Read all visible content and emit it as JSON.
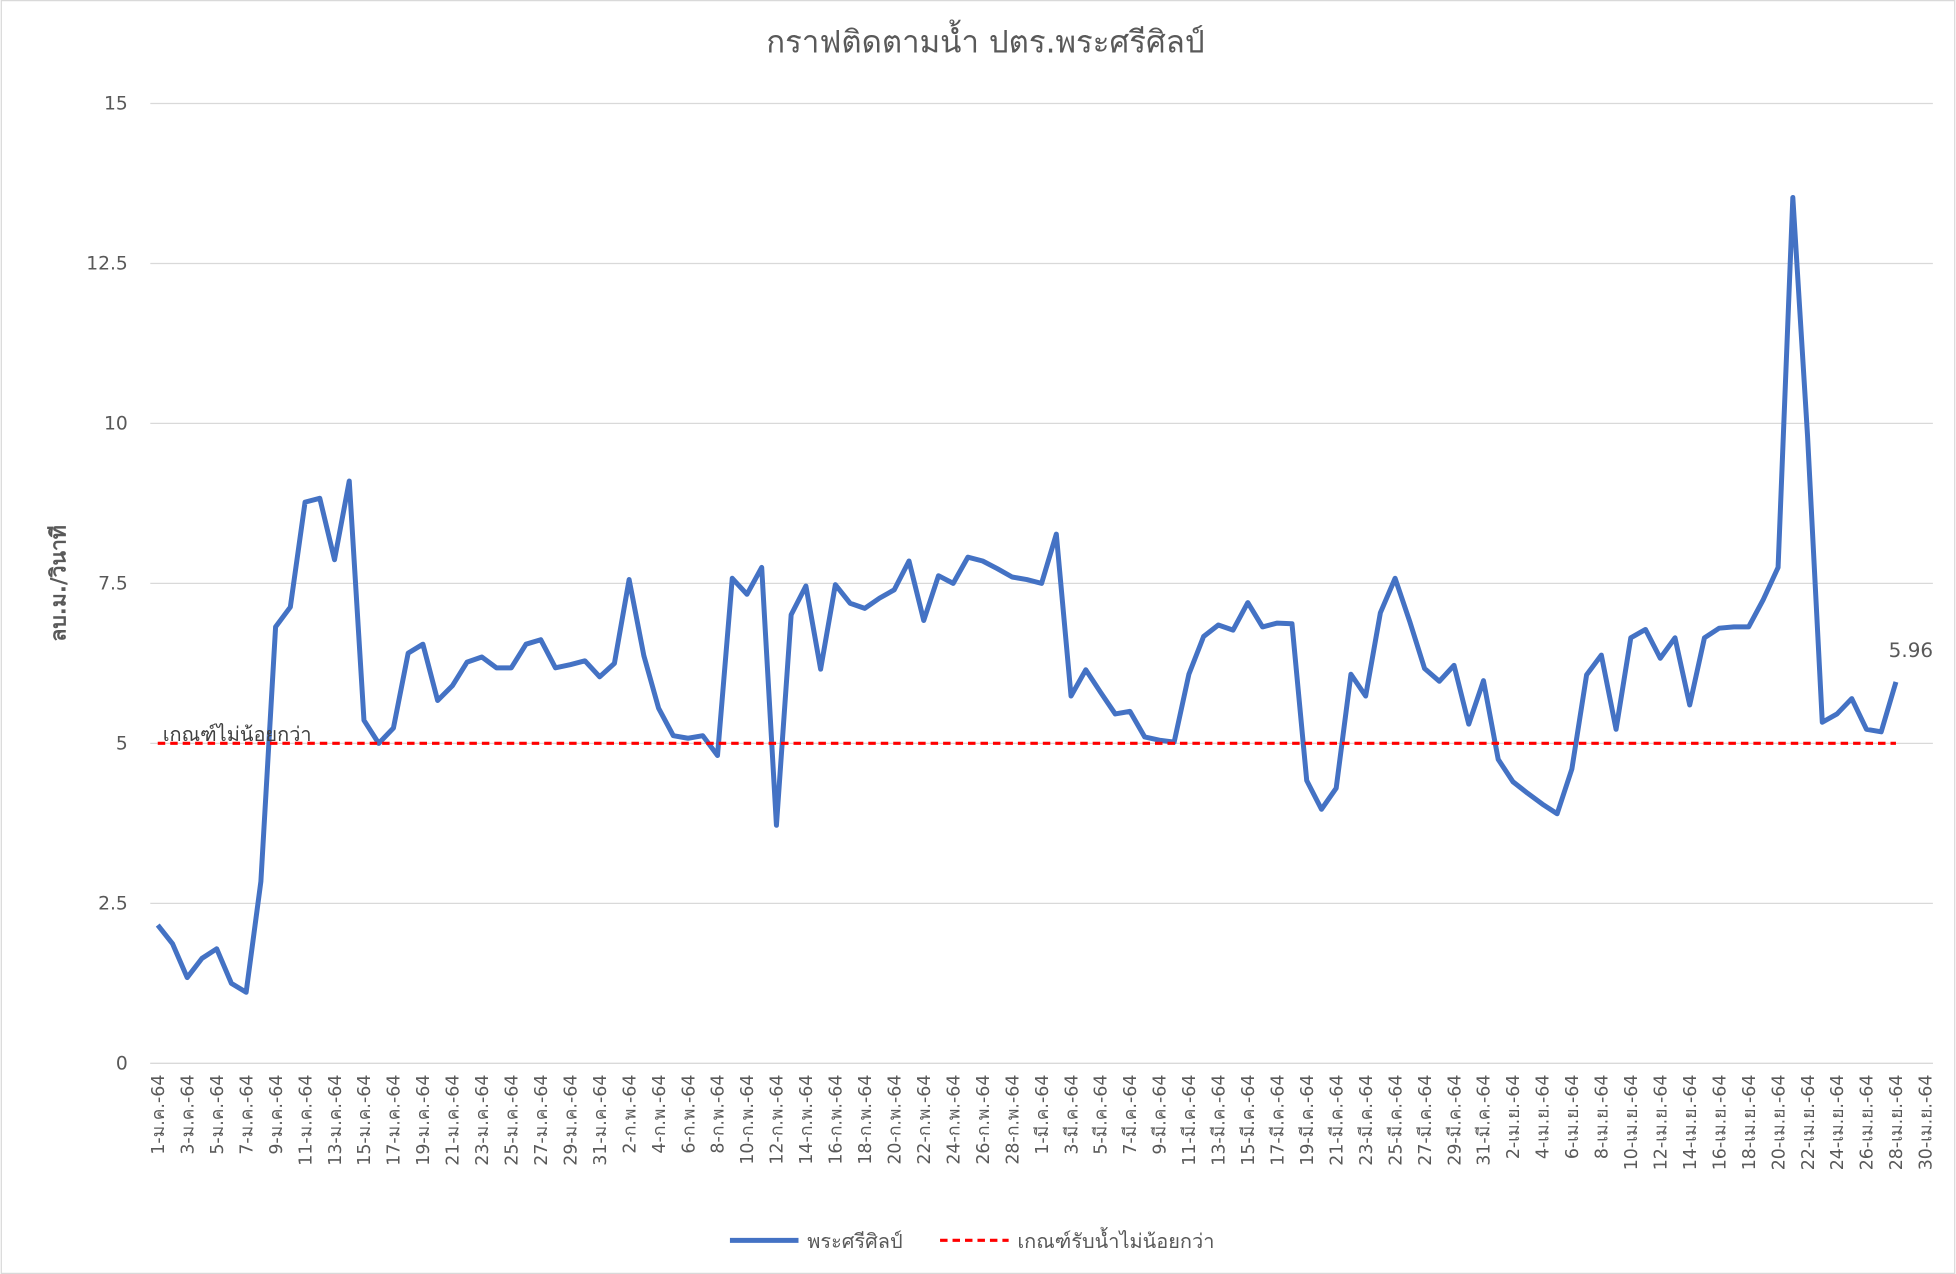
{
  "chart_data": {
    "type": "line",
    "title": "กราฟติดตามน้ำ ปตร.พระศรีศิลป์",
    "y_label": "ลบ.ม./วินาที",
    "annotation": "เกณฑ์ไม่น้อยกว่า",
    "ylim": [
      0,
      15
    ],
    "yticks": [
      0,
      2.5,
      5,
      7.5,
      10,
      12.5,
      15
    ],
    "grid": true,
    "legend": "bottom",
    "categories": [
      "1-ม.ค.-64",
      null,
      "3-ม.ค.-64",
      null,
      "5-ม.ค.-64",
      null,
      "7-ม.ค.-64",
      null,
      "9-ม.ค.-64",
      null,
      "11-ม.ค.-64",
      null,
      "13-ม.ค.-64",
      null,
      "15-ม.ค.-64",
      null,
      "17-ม.ค.-64",
      null,
      "19-ม.ค.-64",
      null,
      "21-ม.ค.-64",
      null,
      "23-ม.ค.-64",
      null,
      "25-ม.ค.-64",
      null,
      "27-ม.ค.-64",
      null,
      "29-ม.ค.-64",
      null,
      "31-ม.ค.-64",
      null,
      "2-ก.พ.-64",
      null,
      "4-ก.พ.-64",
      null,
      "6-ก.พ.-64",
      null,
      "8-ก.พ.-64",
      null,
      "10-ก.พ.-64",
      null,
      "12-ก.พ.-64",
      null,
      "14-ก.พ.-64",
      null,
      "16-ก.พ.-64",
      null,
      "18-ก.พ.-64",
      null,
      "20-ก.พ.-64",
      null,
      "22-ก.พ.-64",
      null,
      "24-ก.พ.-64",
      null,
      "26-ก.พ.-64",
      null,
      "28-ก.พ.-64",
      null,
      "1-มี.ค.-64",
      null,
      "3-มี.ค.-64",
      null,
      "5-มี.ค.-64",
      null,
      "7-มี.ค.-64",
      null,
      "9-มี.ค.-64",
      null,
      "11-มี.ค.-64",
      null,
      "13-มี.ค.-64",
      null,
      "15-มี.ค.-64",
      null,
      "17-มี.ค.-64",
      null,
      "19-มี.ค.-64",
      null,
      "21-มี.ค.-64",
      null,
      "23-มี.ค.-64",
      null,
      "25-มี.ค.-64",
      null,
      "27-มี.ค.-64",
      null,
      "29-มี.ค.-64",
      null,
      "31-มี.ค.-64",
      null,
      "2-เม.ย.-64",
      null,
      "4-เม.ย.-64",
      null,
      "6-เม.ย.-64",
      null,
      "8-เม.ย.-64",
      null,
      "10-เม.ย.-64",
      null,
      "12-เม.ย.-64",
      null,
      "14-เม.ย.-64",
      null,
      "16-เม.ย.-64",
      null,
      "18-เม.ย.-64",
      null,
      "20-เม.ย.-64",
      null,
      "22-เม.ย.-64",
      null,
      "24-เม.ย.-64",
      null,
      "26-เม.ย.-64",
      null,
      "28-เม.ย.-64",
      null,
      "30-เม.ย.-64"
    ],
    "series": [
      {
        "name": "พระศรีศิลป์",
        "color": "#4472c4",
        "style": "solid",
        "label_last": true,
        "values": [
          2.16,
          1.87,
          1.34,
          1.64,
          1.79,
          1.25,
          1.11,
          2.84,
          6.82,
          7.13,
          8.77,
          8.83,
          7.87,
          9.1,
          5.36,
          5.0,
          5.24,
          6.41,
          6.55,
          5.67,
          5.9,
          6.27,
          6.35,
          6.18,
          6.18,
          6.55,
          6.62,
          6.18,
          6.23,
          6.29,
          6.04,
          6.25,
          7.56,
          6.37,
          5.55,
          5.12,
          5.08,
          5.12,
          4.81,
          7.58,
          7.33,
          7.75,
          3.72,
          7.01,
          7.46,
          6.16,
          7.48,
          7.19,
          7.11,
          7.27,
          7.4,
          7.85,
          6.92,
          7.62,
          7.5,
          7.91,
          7.85,
          7.73,
          7.6,
          7.56,
          7.5,
          8.27,
          5.74,
          6.15,
          5.8,
          5.46,
          5.5,
          5.1,
          5.05,
          5.02,
          6.08,
          6.67,
          6.85,
          6.77,
          7.2,
          6.82,
          6.88,
          6.87,
          4.42,
          3.97,
          4.3,
          6.08,
          5.74,
          7.04,
          7.58,
          6.9,
          6.17,
          5.97,
          6.22,
          5.3,
          5.98,
          4.75,
          4.4,
          4.22,
          4.05,
          3.9,
          4.6,
          6.07,
          6.38,
          5.22,
          6.65,
          6.78,
          6.33,
          6.65,
          5.6,
          6.65,
          6.8,
          6.82,
          6.82,
          7.25,
          7.75,
          13.53,
          9.8,
          5.33,
          5.46,
          5.7,
          5.22,
          5.18,
          5.96,
          null,
          null
        ]
      },
      {
        "name": "เกณฑ์รับน้ำไม่น้อยกว่า",
        "color": "#ff0000",
        "style": "dashed",
        "label_last": false,
        "values": [
          5,
          5,
          5,
          5,
          5,
          5,
          5,
          5,
          5,
          5,
          5,
          5,
          5,
          5,
          5,
          5,
          5,
          5,
          5,
          5,
          5,
          5,
          5,
          5,
          5,
          5,
          5,
          5,
          5,
          5,
          5,
          5,
          5,
          5,
          5,
          5,
          5,
          5,
          5,
          5,
          5,
          5,
          5,
          5,
          5,
          5,
          5,
          5,
          5,
          5,
          5,
          5,
          5,
          5,
          5,
          5,
          5,
          5,
          5,
          5,
          5,
          5,
          5,
          5,
          5,
          5,
          5,
          5,
          5,
          5,
          5,
          5,
          5,
          5,
          5,
          5,
          5,
          5,
          5,
          5,
          5,
          5,
          5,
          5,
          5,
          5,
          5,
          5,
          5,
          5,
          5,
          5,
          5,
          5,
          5,
          5,
          5,
          5,
          5,
          5,
          5,
          5,
          5,
          5,
          5,
          5,
          5,
          5,
          5,
          5,
          5,
          5,
          5,
          5,
          5,
          5,
          5,
          5,
          5,
          null,
          null
        ]
      }
    ]
  }
}
